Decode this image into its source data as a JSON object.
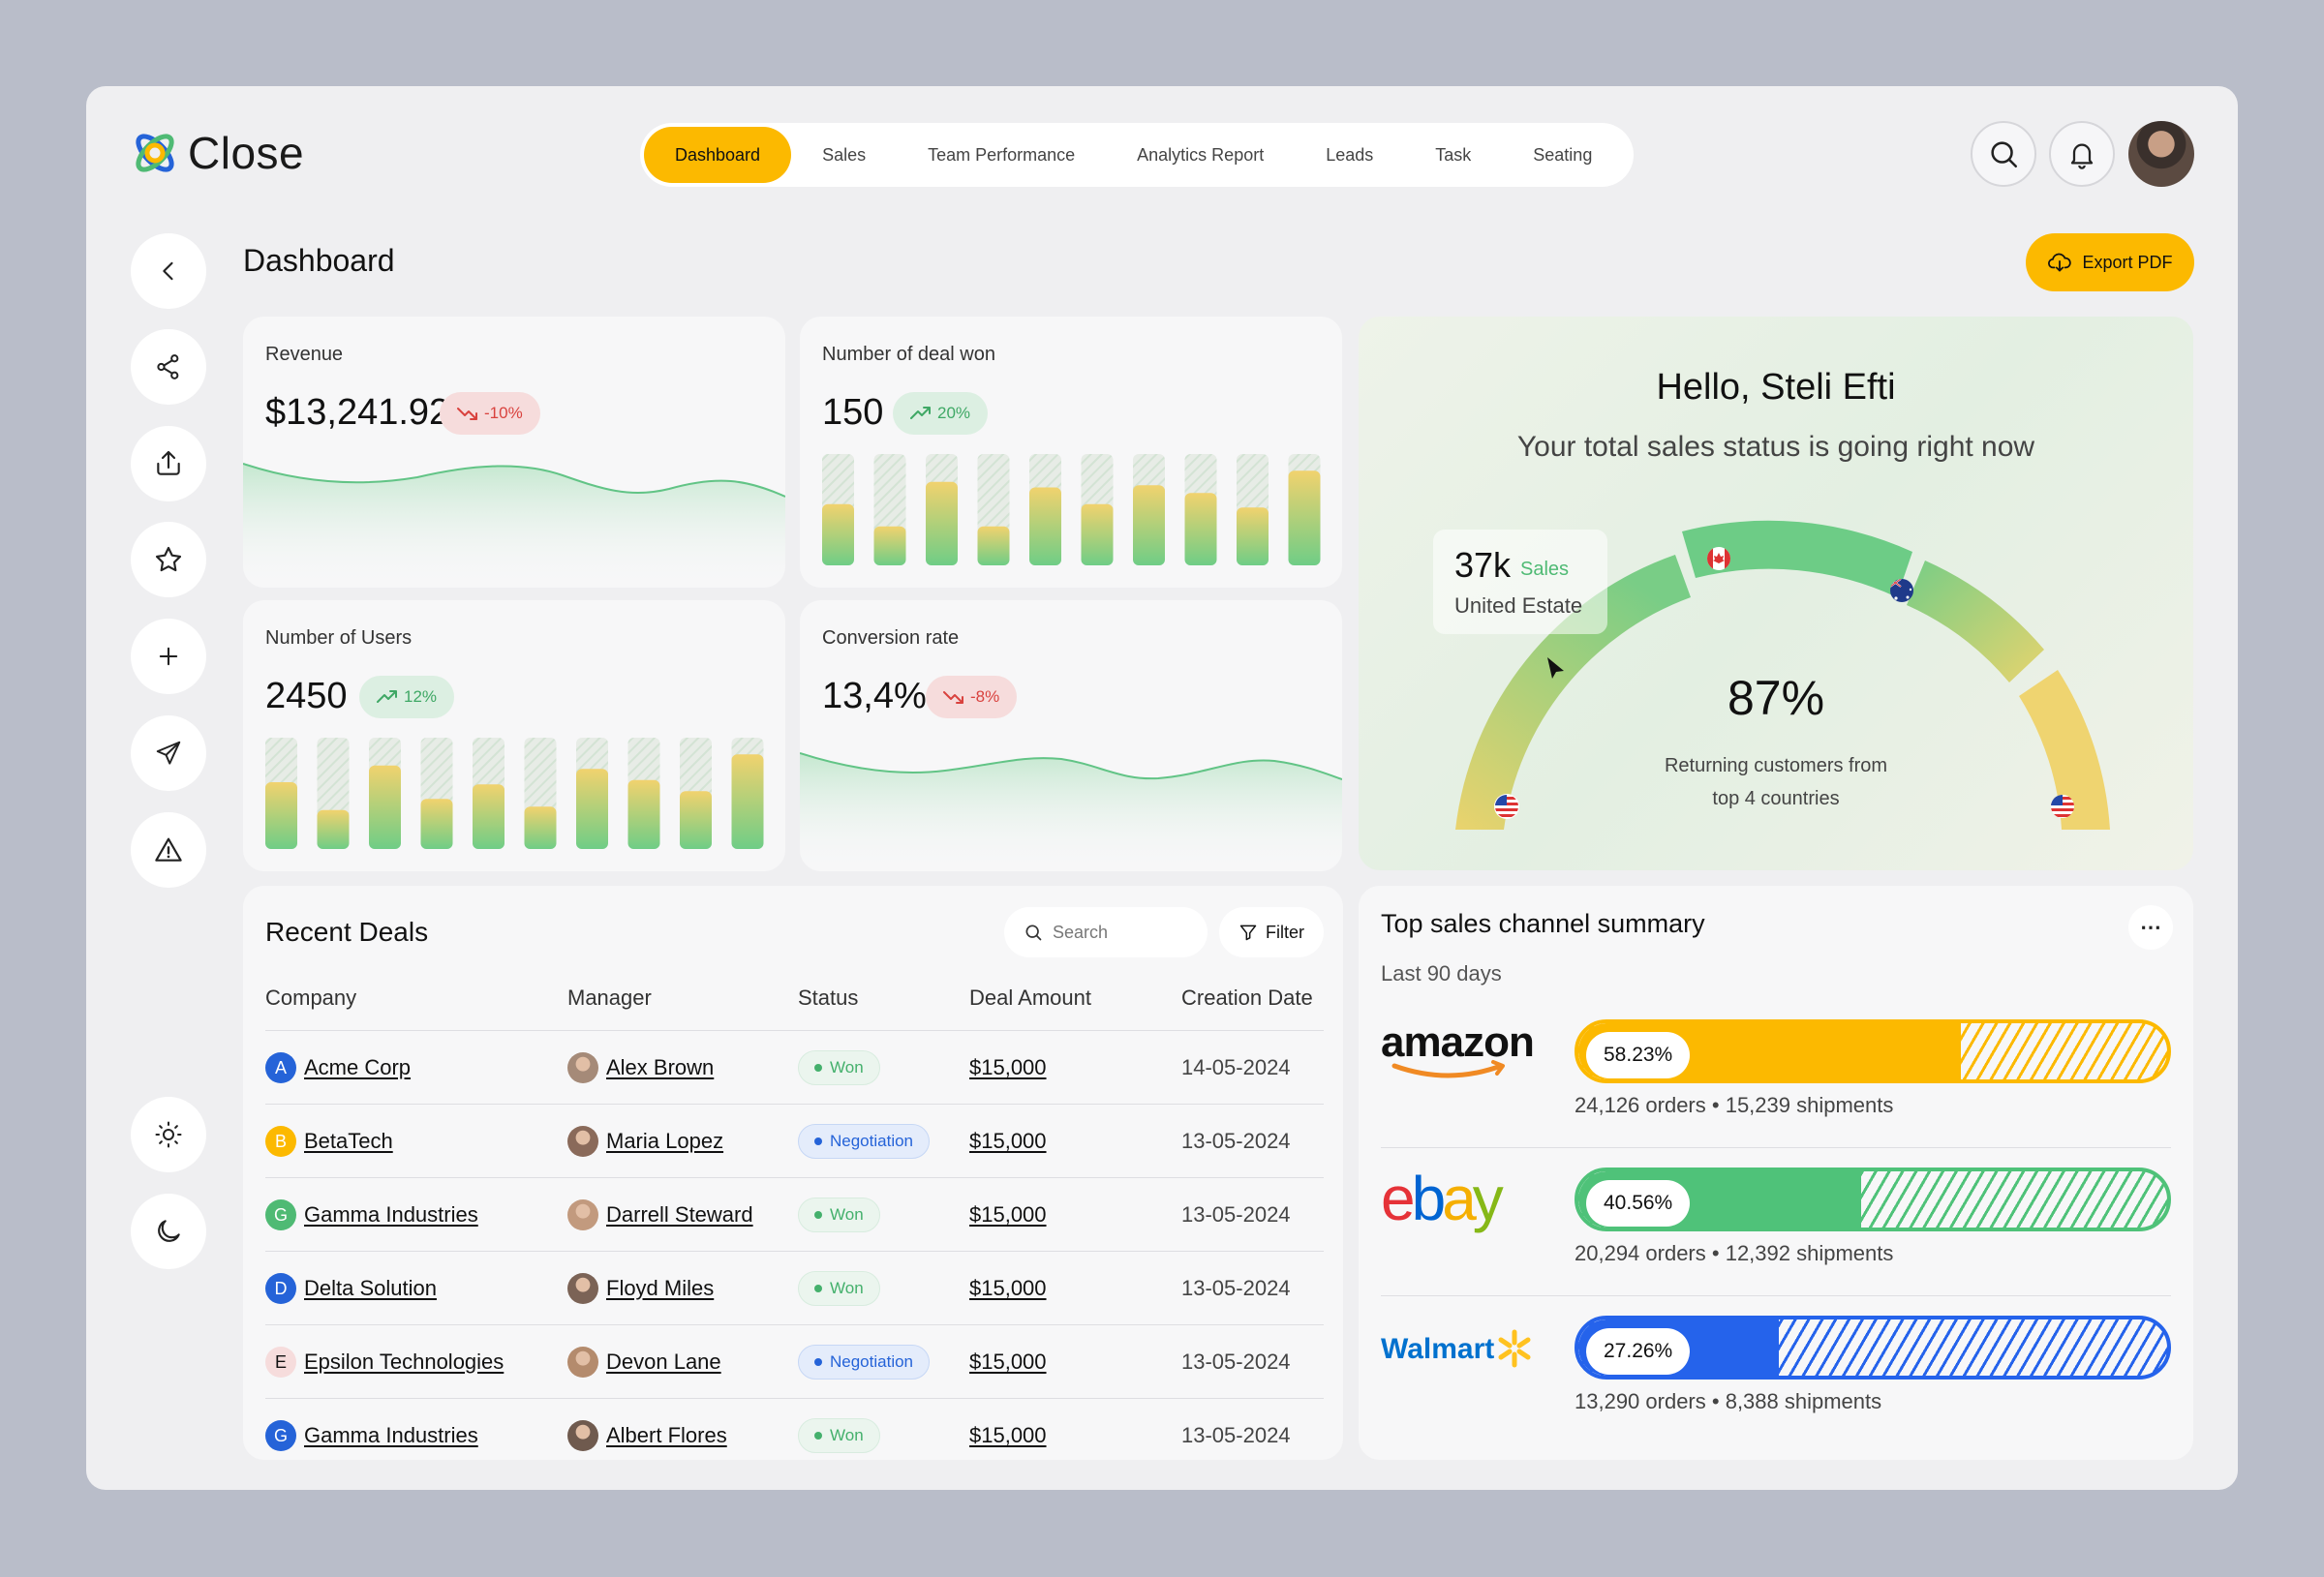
{
  "app": {
    "name": "Close"
  },
  "nav": [
    {
      "label": "Dashboard",
      "active": true
    },
    {
      "label": "Sales"
    },
    {
      "label": "Team Performance"
    },
    {
      "label": "Analytics Report"
    },
    {
      "label": "Leads"
    },
    {
      "label": "Task"
    },
    {
      "label": "Seating"
    }
  ],
  "header_icons": [
    "search-icon",
    "bell-icon"
  ],
  "sidebar_icons": [
    "chevron-left-icon",
    "share-icon",
    "upload-icon",
    "star-icon",
    "plus-icon",
    "send-icon",
    "alert-icon",
    "sun-icon",
    "moon-icon"
  ],
  "page": {
    "title": "Dashboard",
    "export_label": "Export PDF"
  },
  "colors": {
    "accent": "#fcb900",
    "green": "#4fba74",
    "red": "#d9423e",
    "blue": "#2563d8"
  },
  "stats": {
    "revenue": {
      "label": "Revenue",
      "value": "$13,241.92",
      "change": "-10%",
      "trend": "down"
    },
    "deals_won": {
      "label": "Number of deal won",
      "value": "150",
      "change": "20%",
      "trend": "up",
      "bars": [
        0.55,
        0.35,
        0.75,
        0.35,
        0.7,
        0.55,
        0.72,
        0.65,
        0.52,
        0.85
      ]
    },
    "users": {
      "label": "Number of Users",
      "value": "2450",
      "change": "12%",
      "trend": "up",
      "bars": [
        0.6,
        0.35,
        0.75,
        0.45,
        0.58,
        0.38,
        0.72,
        0.62,
        0.52,
        0.85
      ]
    },
    "conversion": {
      "label": "Conversion rate",
      "value": "13,4%",
      "change": "-8%",
      "trend": "down"
    }
  },
  "hello": {
    "title": "Hello, Steli Efti",
    "subtitle": "Your total sales status is going right now",
    "tooltip_value": "37k",
    "tooltip_unit": "Sales",
    "tooltip_country": "United Estate",
    "percent": "87%",
    "description_line1": "Returning customers from",
    "description_line2": "top 4 countries"
  },
  "deals": {
    "title": "Recent Deals",
    "search_placeholder": "Search",
    "filter_label": "Filter",
    "columns": [
      "Company",
      "Manager",
      "Status",
      "Deal Amount",
      "Creation Date"
    ],
    "rows": [
      {
        "initial": "A",
        "badge_color": "#2563d8",
        "company": "Acme Corp",
        "manager": "Alex Brown",
        "status": "Won",
        "status_type": "won",
        "amount": "$15,000",
        "date": "14-05-2024"
      },
      {
        "initial": "B",
        "badge_color": "#fcb900",
        "company": "BetaTech",
        "manager": "Maria Lopez",
        "status": "Negotiation",
        "status_type": "neg",
        "amount": "$15,000",
        "date": "13-05-2024"
      },
      {
        "initial": "G",
        "badge_color": "#4fba74",
        "company": "Gamma Industries",
        "manager": "Darrell Steward",
        "status": "Won",
        "status_type": "won",
        "amount": "$15,000",
        "date": "13-05-2024"
      },
      {
        "initial": "D",
        "badge_color": "#2563d8",
        "company": "Delta Solution",
        "manager": "Floyd Miles",
        "status": "Won",
        "status_type": "won",
        "amount": "$15,000",
        "date": "13-05-2024"
      },
      {
        "initial": "E",
        "badge_color": "#f6dcdc",
        "company": "Epsilon Technologies",
        "manager": "Devon Lane",
        "status": "Negotiation",
        "status_type": "neg",
        "amount": "$15,000",
        "date": "13-05-2024"
      },
      {
        "initial": "G",
        "badge_color": "#2563d8",
        "company": "Gamma Industries",
        "manager": "Albert Flores",
        "status": "Won",
        "status_type": "won",
        "amount": "$15,000",
        "date": "13-05-2024"
      }
    ]
  },
  "channels": {
    "title": "Top sales channel summary",
    "period": "Last 90 days",
    "items": [
      {
        "name": "amazon",
        "percent": "58.23%",
        "fraction": 0.65,
        "color": "#fcb900",
        "orders": "24,126 orders",
        "shipments": "15,239 shipments"
      },
      {
        "name": "ebay",
        "percent": "40.56%",
        "fraction": 0.48,
        "color": "#4fc279",
        "orders": "20,294 orders",
        "shipments": "12,392 shipments"
      },
      {
        "name": "Walmart",
        "percent": "27.26%",
        "fraction": 0.34,
        "color": "#2563eb",
        "orders": "13,290 orders",
        "shipments": "8,388 shipments"
      }
    ]
  }
}
